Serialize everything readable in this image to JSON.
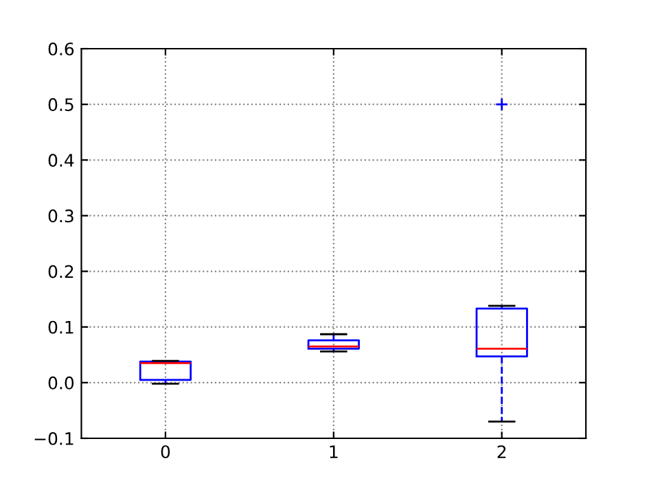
{
  "chart_data": {
    "type": "box",
    "categories": [
      "0",
      "1",
      "2"
    ],
    "boxes": [
      {
        "low": -0.002,
        "q1": 0.005,
        "median": 0.035,
        "q3": 0.038,
        "high": 0.039
      },
      {
        "low": 0.056,
        "q1": 0.061,
        "median": 0.065,
        "q3": 0.076,
        "high": 0.087
      },
      {
        "low": -0.07,
        "q1": 0.047,
        "median": 0.061,
        "q3": 0.133,
        "high": 0.138,
        "outliers": [
          0.5
        ]
      }
    ],
    "color": "#0000ff",
    "ylim": [
      -0.1,
      0.6
    ],
    "yticks": [
      {
        "value": -0.1,
        "label": "−0.1"
      },
      {
        "value": 0.0,
        "label": "0.0"
      },
      {
        "value": 0.1,
        "label": "0.1"
      },
      {
        "value": 0.2,
        "label": "0.2"
      },
      {
        "value": 0.3,
        "label": "0.3"
      },
      {
        "value": 0.4,
        "label": "0.4"
      },
      {
        "value": 0.5,
        "label": "0.5"
      },
      {
        "value": 0.6,
        "label": "0.6"
      }
    ],
    "grid": true,
    "marker": "cross"
  }
}
